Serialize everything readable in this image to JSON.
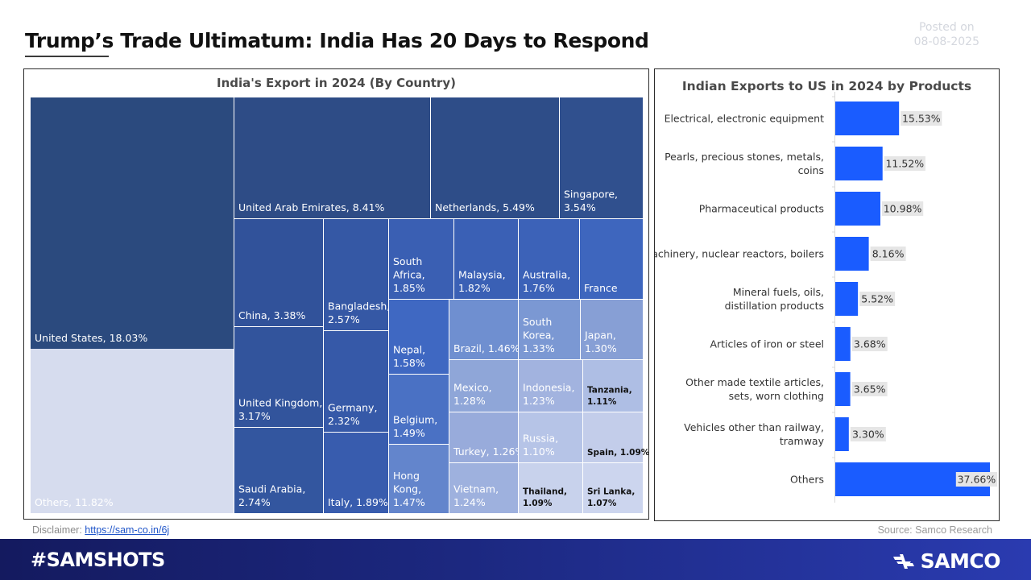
{
  "header": {
    "title": "Trump’s Trade Ultimatum: India Has 20 Days to Respond",
    "posted_label": "Posted on",
    "posted_date": "08-08-2025"
  },
  "footer": {
    "disclaimer_label": "Disclaimer:",
    "disclaimer_link": "https://sam-co.in/6j",
    "source": "Source: Samco Research",
    "hashtag": "#SAMSHOTS",
    "brand": "SAMCO",
    "brand_icon": "samco-logo-icon",
    "bg_colors": [
      "#141a5f",
      "#2a3bb0"
    ]
  },
  "chart_data": [
    {
      "type": "treemap",
      "title": "India's Export in 2024 (By Country)",
      "items": [
        {
          "label": "United States, 18.03%",
          "name": "United States",
          "value": 18.03,
          "color": "#2b4a7e",
          "text_color": "#ffffff"
        },
        {
          "label": "Others, 11.82%",
          "name": "Others",
          "value": 11.82,
          "color": "#d6dcee",
          "text_color": "#ffffff"
        },
        {
          "label": "United Arab Emirates, 8.41%",
          "name": "United Arab Emirates",
          "value": 8.41,
          "color": "#2e4c86",
          "text_color": "#ffffff"
        },
        {
          "label": "Netherlands, 5.49%",
          "name": "Netherlands",
          "value": 5.49,
          "color": "#2e4d88",
          "text_color": "#ffffff"
        },
        {
          "label": "Singapore, 3.54%",
          "name": "Singapore",
          "value": 3.54,
          "color": "#30508e",
          "text_color": "#ffffff"
        },
        {
          "label": "China, 3.38%",
          "name": "China",
          "value": 3.38,
          "color": "#31529a",
          "text_color": "#ffffff"
        },
        {
          "label": "United Kingdom, 3.17%",
          "name": "United Kingdom",
          "value": 3.17,
          "color": "#32549c",
          "text_color": "#ffffff"
        },
        {
          "label": "Saudi Arabia, 2.74%",
          "name": "Saudi Arabia",
          "value": 2.74,
          "color": "#33569f",
          "text_color": "#ffffff"
        },
        {
          "label": "Bangladesh, 2.57%",
          "name": "Bangladesh",
          "value": 2.57,
          "color": "#3558a5",
          "text_color": "#ffffff"
        },
        {
          "label": "Germany, 2.32%",
          "name": "Germany",
          "value": 2.32,
          "color": "#3659a8",
          "text_color": "#ffffff"
        },
        {
          "label": "Italy, 1.89%",
          "name": "Italy",
          "value": 1.89,
          "color": "#385cae",
          "text_color": "#ffffff"
        },
        {
          "label": "South Africa, 1.85%",
          "name": "South Africa",
          "value": 1.85,
          "color": "#3a5fb3",
          "text_color": "#ffffff"
        },
        {
          "label": "Malaysia, 1.82%",
          "name": "Malaysia",
          "value": 1.82,
          "color": "#3a60b5",
          "text_color": "#ffffff"
        },
        {
          "label": "Australia, 1.76%",
          "name": "Australia",
          "value": 1.76,
          "color": "#3c62b8",
          "text_color": "#ffffff"
        },
        {
          "label": "France",
          "name": "France",
          "value": null,
          "color": "#3e66be",
          "text_color": "#ffffff"
        },
        {
          "label": "Nepal, 1.58%",
          "name": "Nepal",
          "value": 1.58,
          "color": "#3f68c2",
          "text_color": "#ffffff"
        },
        {
          "label": "Belgium, 1.49%",
          "name": "Belgium",
          "value": 1.49,
          "color": "#4a71c4",
          "text_color": "#ffffff"
        },
        {
          "label": "Hong Kong, 1.47%",
          "name": "Hong Kong",
          "value": 1.47,
          "color": "#6385cc",
          "text_color": "#ffffff"
        },
        {
          "label": "Brazil, 1.46%",
          "name": "Brazil",
          "value": 1.46,
          "color": "#6f8fd0",
          "text_color": "#ffffff"
        },
        {
          "label": "South Korea, 1.33%",
          "name": "South Korea",
          "value": 1.33,
          "color": "#7b98d3",
          "text_color": "#ffffff"
        },
        {
          "label": "Japan, 1.30%",
          "name": "Japan",
          "value": 1.3,
          "color": "#879fd5",
          "text_color": "#ffffff"
        },
        {
          "label": "Mexico, 1.28%",
          "name": "Mexico",
          "value": 1.28,
          "color": "#8fa6d8",
          "text_color": "#ffffff"
        },
        {
          "label": "Indonesia, 1.23%",
          "name": "Indonesia",
          "value": 1.23,
          "color": "#a2b3df",
          "text_color": "#ffffff"
        },
        {
          "label": "Tanzania, 1.11%",
          "name": "Tanzania",
          "value": 1.11,
          "color": "#aebee4",
          "text_color": "#111111"
        },
        {
          "label": "Turkey, 1.26%",
          "name": "Turkey",
          "value": 1.26,
          "color": "#98abdb",
          "text_color": "#ffffff"
        },
        {
          "label": "Russia, 1.10%",
          "name": "Russia",
          "value": 1.1,
          "color": "#b6c4e7",
          "text_color": "#ffffff"
        },
        {
          "label": "Spain, 1.09%",
          "name": "Spain",
          "value": 1.09,
          "color": "#c3cdea",
          "text_color": "#111111"
        },
        {
          "label": "Vietnam, 1.24%",
          "name": "Vietnam",
          "value": 1.24,
          "color": "#9eb1de",
          "text_color": "#ffffff"
        },
        {
          "label": "Thailand, 1.09%",
          "name": "Thailand",
          "value": 1.09,
          "color": "#c8d2ec",
          "text_color": "#111111"
        },
        {
          "label": "Sri Lanka, 1.07%",
          "name": "Sri Lanka",
          "value": 1.07,
          "color": "#ccd5ee",
          "text_color": "#111111"
        }
      ]
    },
    {
      "type": "bar",
      "orientation": "horizontal",
      "title": "Indian Exports to US in 2024 by Products",
      "categories": [
        "Electrical, electronic equipment",
        "Pearls, precious stones, metals, coins",
        "Pharmaceutical products",
        "Machinery, nuclear reactors, boilers",
        "Mineral fuels, oils, distillation products",
        "Articles of iron or steel",
        "Other made textile articles, sets, worn clothing",
        "Vehicles other than railway, tramway",
        "Others"
      ],
      "values": [
        15.53,
        11.52,
        10.98,
        8.16,
        5.52,
        3.68,
        3.65,
        3.3,
        37.66
      ],
      "value_labels": [
        "15.53%",
        "11.52%",
        "10.98%",
        "8.16%",
        "5.52%",
        "3.68%",
        "3.65%",
        "3.30%",
        "37.66%"
      ],
      "bar_color": "#1a5cff",
      "label_bg": "#e6e6e6",
      "xlim": [
        0,
        37.66
      ]
    }
  ]
}
